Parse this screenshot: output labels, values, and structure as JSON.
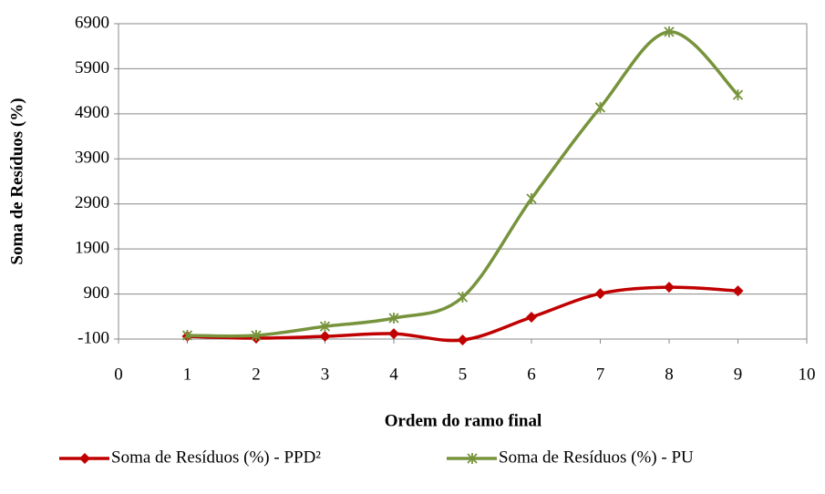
{
  "chart_data": {
    "type": "line",
    "x_label": "Ordem do ramo final",
    "y_label": "Soma de Resíduos (%)",
    "xlim": [
      0,
      10
    ],
    "xticks": [
      0,
      1,
      2,
      3,
      4,
      5,
      6,
      7,
      8,
      9,
      10
    ],
    "ylim": [
      -100,
      6900
    ],
    "yticks": [
      -100,
      900,
      1900,
      2900,
      3900,
      4900,
      5900,
      6900
    ],
    "grid": true,
    "legend": "bottom",
    "smooth": true,
    "series": [
      {
        "name": "Soma de Resíduos (%) - PPD²",
        "color": "#c00000",
        "marker": "diamond",
        "x": [
          1,
          2,
          3,
          4,
          5,
          6,
          7,
          8,
          9
        ],
        "values": [
          -40,
          -80,
          -40,
          20,
          -120,
          385,
          910,
          1050,
          970
        ]
      },
      {
        "name": "Soma de Resíduos (%) - PU",
        "color": "#77933c",
        "marker": "star",
        "x": [
          1,
          2,
          3,
          4,
          5,
          6,
          7,
          8,
          9
        ],
        "values": [
          -20,
          -20,
          180,
          365,
          830,
          3015,
          5040,
          6720,
          5320
        ]
      }
    ]
  }
}
